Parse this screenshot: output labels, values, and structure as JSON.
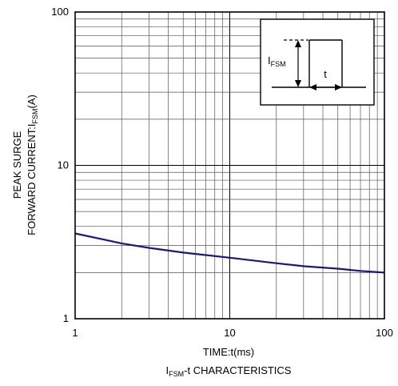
{
  "chart_data": {
    "type": "line",
    "title": "",
    "caption": {
      "prefix": "I",
      "sub": "FSM",
      "suffix": "-t CHARACTERISTICS"
    },
    "xlabel": "TIME:t(ms)",
    "ylabel": {
      "line1": "PEAK SURGE",
      "line2_prefix": "FORWARD CURRENT:I",
      "line2_sub": "FSM",
      "line2_suffix": "(A)"
    },
    "xscale": "log",
    "yscale": "log",
    "xlim": [
      1,
      100
    ],
    "ylim": [
      1,
      100
    ],
    "x_ticks": [
      1,
      10,
      100
    ],
    "x_tick_labels": [
      "1",
      "10",
      "100"
    ],
    "y_ticks": [
      1,
      10,
      100
    ],
    "y_tick_labels": [
      "1",
      "10",
      "100"
    ],
    "grid": true,
    "series": [
      {
        "color": "#1a1a6e",
        "x": [
          1,
          2,
          3,
          5,
          7,
          10,
          20,
          30,
          50,
          70,
          100
        ],
        "y": [
          3.6,
          3.1,
          2.9,
          2.7,
          2.6,
          2.5,
          2.3,
          2.2,
          2.12,
          2.05,
          2.0
        ]
      }
    ],
    "inset": {
      "label_prefix": "I",
      "label_sub": "FSM",
      "time_label": "t"
    }
  }
}
